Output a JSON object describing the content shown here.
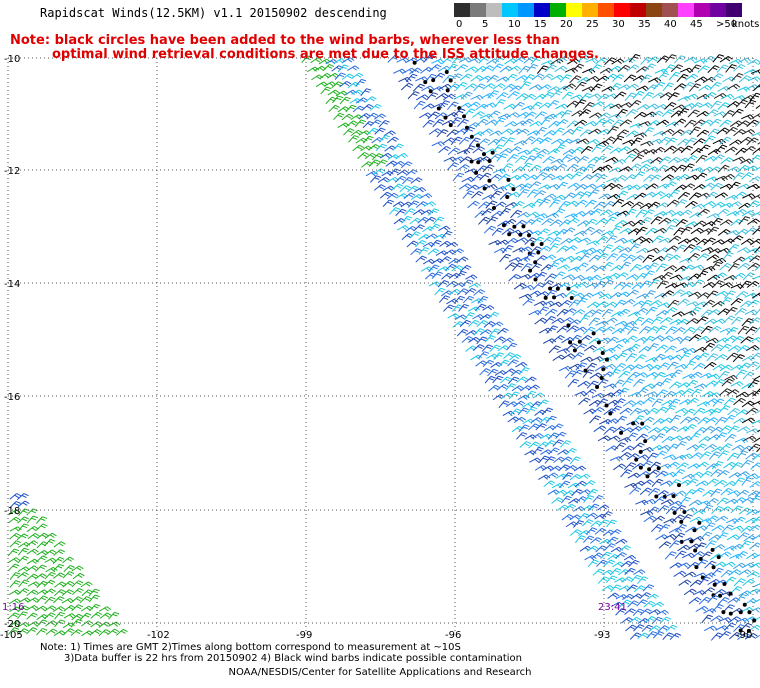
{
  "title": "Rapidscat Winds(12.5KM) v1.1 20150902 descending",
  "note_red": {
    "line1": "Note: black circles have been added to the wind barbs, wherever less than",
    "line2": "optimal wind retrieval conditions are met due to the ISS attitude changes."
  },
  "legend": {
    "unit": "knots",
    "labels": [
      "0",
      "5",
      "10",
      "15",
      "20",
      "25",
      "30",
      "35",
      "40",
      "45",
      ">50"
    ],
    "colors": [
      "#2e2e2e",
      "#7a7a7a",
      "#bdbdbd",
      "#00c8ff",
      "#0096ff",
      "#0000c8",
      "#00b000",
      "#ffff00",
      "#ffb000",
      "#ff5000",
      "#ff0000",
      "#c00000",
      "#8b4513",
      "#a05050",
      "#ff40ff",
      "#b000b0",
      "#7000a0",
      "#400070"
    ]
  },
  "map": {
    "lat_labels": [
      "-10",
      "-12",
      "-14",
      "-16",
      "-18",
      "-20"
    ],
    "lon_labels": [
      "-105",
      "-102",
      "-99",
      "-96",
      "-93",
      "-90"
    ],
    "time_labels": [
      {
        "text": "1:16",
        "color": "#7a00a0"
      },
      {
        "text": "23:41",
        "color": "#7a00a0"
      }
    ]
  },
  "footer": {
    "line1": "Note: 1) Times are GMT 2)Times along bottom correspond to measurement at ~10S",
    "line2": "3)Data buffer is 22 hrs from 20150902 4) Black wind barbs indicate possible contamination"
  },
  "credit": "NOAA/NESDIS/Center for Satellite Applications and Research"
}
